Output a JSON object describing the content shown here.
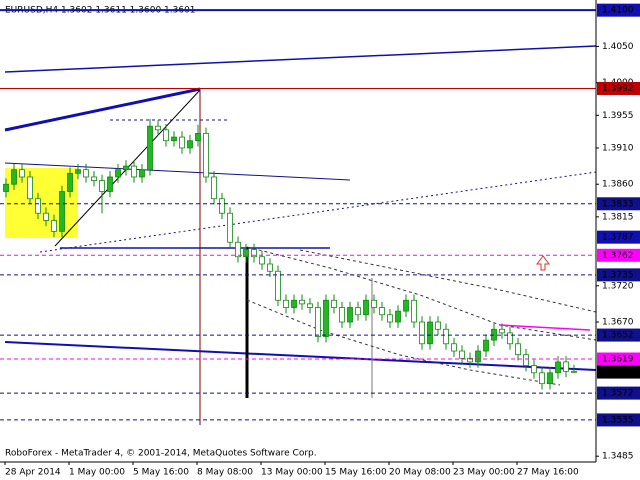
{
  "chart_data": {
    "type": "candlestick",
    "header": "EURUSD,H4  1.3602 1.3611 1.3600 1.3601",
    "footer": "RoboForex - MetaTrader 4, © 2001-2014, MetaQuotes Software Corp.",
    "categories": [
      "28 Apr 2014",
      null,
      null,
      null,
      null,
      null,
      null,
      null,
      "1 May 00:00",
      null,
      null,
      null,
      null,
      null,
      null,
      null,
      "5 May 16:00",
      null,
      null,
      null,
      null,
      null,
      null,
      null,
      "8 May 08:00",
      null,
      null,
      null,
      null,
      null,
      null,
      null,
      "13 May 00:00",
      null,
      null,
      null,
      null,
      null,
      null,
      null,
      "15 May 16:00",
      null,
      null,
      null,
      null,
      null,
      null,
      null,
      "20 May 08:00",
      null,
      null,
      null,
      null,
      null,
      null,
      null,
      "23 May 00:00",
      null,
      null,
      null,
      null,
      null,
      null,
      null,
      "27 May 16:00",
      null,
      null,
      null,
      null,
      null,
      null,
      null
    ],
    "open": [
      1.385,
      1.386,
      1.388,
      1.387,
      1.384,
      1.382,
      1.381,
      1.3795,
      1.385,
      1.3875,
      1.388,
      1.387,
      1.3865,
      1.385,
      1.387,
      1.388,
      1.3885,
      1.387,
      1.388,
      1.394,
      1.3935,
      1.392,
      1.3925,
      1.391,
      1.392,
      1.393,
      1.387,
      1.384,
      1.382,
      1.378,
      1.376,
      1.377,
      1.376,
      1.375,
      1.374,
      1.37,
      1.369,
      1.37,
      1.3695,
      1.369,
      1.365,
      1.37,
      1.369,
      1.367,
      1.369,
      1.368,
      1.37,
      1.369,
      1.368,
      1.367,
      1.3685,
      1.37,
      1.367,
      1.364,
      1.367,
      1.366,
      1.364,
      1.363,
      1.362,
      1.3615,
      1.363,
      1.3645,
      1.366,
      1.3655,
      1.364,
      1.3625,
      1.361,
      1.36,
      1.3585,
      1.36,
      1.3615,
      1.3602
    ],
    "high": [
      1.3868,
      1.3888,
      1.3888,
      1.3878,
      1.3848,
      1.3828,
      1.3818,
      1.3858,
      1.3883,
      1.3888,
      1.3888,
      1.3878,
      1.3873,
      1.3878,
      1.3888,
      1.3893,
      1.3893,
      1.3888,
      1.395,
      1.3948,
      1.3943,
      1.3933,
      1.3933,
      1.3928,
      1.3942,
      1.3938,
      1.3878,
      1.3848,
      1.3828,
      1.3788,
      1.3778,
      1.3778,
      1.3768,
      1.3758,
      1.3748,
      1.3708,
      1.3708,
      1.3708,
      1.3703,
      1.3698,
      1.3708,
      1.3708,
      1.3698,
      1.3698,
      1.3698,
      1.3708,
      1.3708,
      1.3698,
      1.3688,
      1.3693,
      1.3708,
      1.3708,
      1.3678,
      1.3678,
      1.3678,
      1.3668,
      1.3648,
      1.3638,
      1.3628,
      1.3638,
      1.3653,
      1.3668,
      1.3668,
      1.3663,
      1.3648,
      1.3633,
      1.3618,
      1.3608,
      1.3608,
      1.3623,
      1.3623,
      1.3611
    ],
    "low": [
      1.3842,
      1.3852,
      1.3862,
      1.3832,
      1.3812,
      1.3802,
      1.3787,
      1.3787,
      1.3842,
      1.3867,
      1.3862,
      1.3857,
      1.382,
      1.3842,
      1.3862,
      1.3872,
      1.3862,
      1.3862,
      1.3872,
      1.3927,
      1.3912,
      1.3912,
      1.3902,
      1.3902,
      1.3912,
      1.3862,
      1.3832,
      1.3812,
      1.3772,
      1.3752,
      1.3752,
      1.3752,
      1.3742,
      1.3732,
      1.3692,
      1.3682,
      1.3682,
      1.3687,
      1.3682,
      1.3642,
      1.3642,
      1.3682,
      1.3662,
      1.3662,
      1.3672,
      1.3672,
      1.3682,
      1.3672,
      1.3662,
      1.3662,
      1.3677,
      1.3662,
      1.3632,
      1.3632,
      1.3652,
      1.3632,
      1.3622,
      1.3612,
      1.3607,
      1.3607,
      1.3622,
      1.3637,
      1.3647,
      1.3632,
      1.3617,
      1.3602,
      1.3592,
      1.3577,
      1.3577,
      1.3592,
      1.3594,
      1.36
    ],
    "close": [
      1.386,
      1.388,
      1.387,
      1.384,
      1.382,
      1.381,
      1.3795,
      1.385,
      1.3875,
      1.388,
      1.387,
      1.3865,
      1.385,
      1.387,
      1.388,
      1.3885,
      1.387,
      1.388,
      1.394,
      1.3935,
      1.392,
      1.3925,
      1.391,
      1.392,
      1.393,
      1.387,
      1.384,
      1.382,
      1.378,
      1.376,
      1.377,
      1.376,
      1.375,
      1.374,
      1.37,
      1.369,
      1.37,
      1.3695,
      1.369,
      1.365,
      1.37,
      1.369,
      1.367,
      1.369,
      1.368,
      1.37,
      1.369,
      1.368,
      1.367,
      1.3685,
      1.37,
      1.367,
      1.364,
      1.367,
      1.366,
      1.364,
      1.363,
      1.362,
      1.3615,
      1.363,
      1.3645,
      1.366,
      1.3655,
      1.364,
      1.3625,
      1.361,
      1.36,
      1.3585,
      1.36,
      1.3615,
      1.3602,
      1.3601
    ],
    "up_color": "#22b822",
    "down_color": "#ffffff",
    "wick_color": "#118811",
    "ylim": [
      1.3477,
      1.4114
    ],
    "yticks": [
      {
        "value": 1.405,
        "label": "1.4050"
      },
      {
        "value": 1.4,
        "label": "1.4000"
      },
      {
        "value": 1.3955,
        "label": "1.3955"
      },
      {
        "value": 1.391,
        "label": "1.3910"
      },
      {
        "value": 1.386,
        "label": "1.3860"
      },
      {
        "value": 1.3815,
        "label": "1.3815"
      },
      {
        "value": 1.372,
        "label": "1.3720"
      },
      {
        "value": 1.367,
        "label": "1.3670"
      },
      {
        "value": 1.3485,
        "label": "1.3485"
      }
    ],
    "levels": [
      {
        "value": 1.41,
        "label": "1.4100",
        "color": "#1010b0",
        "style": "thick"
      },
      {
        "value": 1.3992,
        "label": "1.3992",
        "color": "#c00000",
        "style": "solid"
      },
      {
        "value": 1.3833,
        "label": "1.3833",
        "color": "#10108b",
        "style": "dashed"
      },
      {
        "value": 1.3787,
        "label": "1.3787",
        "color": "#1010b0",
        "style": "none"
      },
      {
        "value": 1.3762,
        "label": "1.3762",
        "color": "#ff00ff",
        "style": "dashed"
      },
      {
        "value": 1.3735,
        "label": "1.3735",
        "color": "#10108b",
        "style": "dashed"
      },
      {
        "value": 1.3652,
        "label": "1.3652",
        "color": "#10108b",
        "style": "dashed"
      },
      {
        "value": 1.3619,
        "label": "1.3619",
        "color": "#ff00ff",
        "style": "dashed"
      },
      {
        "value": 1.3601,
        "label": "1.3601",
        "color": "#000000",
        "style": "none"
      },
      {
        "value": 1.3572,
        "label": "1.3572",
        "color": "#10108b",
        "style": "dashed"
      },
      {
        "value": 1.3535,
        "label": "1.3535",
        "color": "#10108b",
        "style": "dashed"
      }
    ]
  }
}
